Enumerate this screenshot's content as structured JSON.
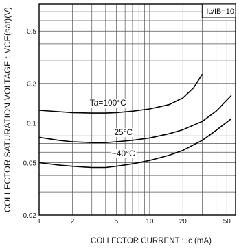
{
  "chart_data": {
    "type": "line",
    "xlabel": "COLLECTOR CURRENT : Ic (mA)",
    "ylabel": "COLLECTOR SATURATION VOLTAGE : VCE(sat)(V)",
    "x_scale": "log",
    "y_scale": "log",
    "xlim": [
      1,
      60
    ],
    "ylim": [
      0.02,
      0.8
    ],
    "x_ticks": [
      {
        "value": 1,
        "label": "1"
      },
      {
        "value": 2,
        "label": "2"
      },
      {
        "value": 5,
        "label": "5"
      },
      {
        "value": 10,
        "label": "10"
      },
      {
        "value": 20,
        "label": "20"
      },
      {
        "value": 50,
        "label": "50"
      }
    ],
    "y_ticks": [
      {
        "value": 0.02,
        "label": "0.02"
      },
      {
        "value": 0.05,
        "label": "0.05"
      },
      {
        "value": 0.1,
        "label": "0.1"
      },
      {
        "value": 0.2,
        "label": "0.2"
      },
      {
        "value": 0.5,
        "label": "0.5"
      }
    ],
    "condition_label": "Ic/IB=10",
    "grid": true,
    "series": [
      {
        "name": "Ta=100°C",
        "x": [
          1,
          1.5,
          2,
          3,
          4,
          5,
          7,
          10,
          15,
          20,
          25,
          30
        ],
        "y": [
          0.125,
          0.122,
          0.12,
          0.119,
          0.119,
          0.12,
          0.123,
          0.128,
          0.138,
          0.155,
          0.185,
          0.235
        ]
      },
      {
        "name": "25°C",
        "x": [
          1,
          1.5,
          2,
          3,
          4,
          5,
          7,
          10,
          15,
          20,
          30,
          40,
          55
        ],
        "y": [
          0.078,
          0.074,
          0.072,
          0.071,
          0.071,
          0.072,
          0.074,
          0.077,
          0.083,
          0.089,
          0.103,
          0.123,
          0.162
        ]
      },
      {
        "name": "−40°C",
        "x": [
          1,
          1.5,
          2,
          3,
          4,
          5,
          7,
          10,
          15,
          20,
          30,
          40,
          55
        ],
        "y": [
          0.05,
          0.048,
          0.047,
          0.046,
          0.046,
          0.047,
          0.049,
          0.052,
          0.057,
          0.062,
          0.074,
          0.088,
          0.108
        ]
      }
    ]
  }
}
